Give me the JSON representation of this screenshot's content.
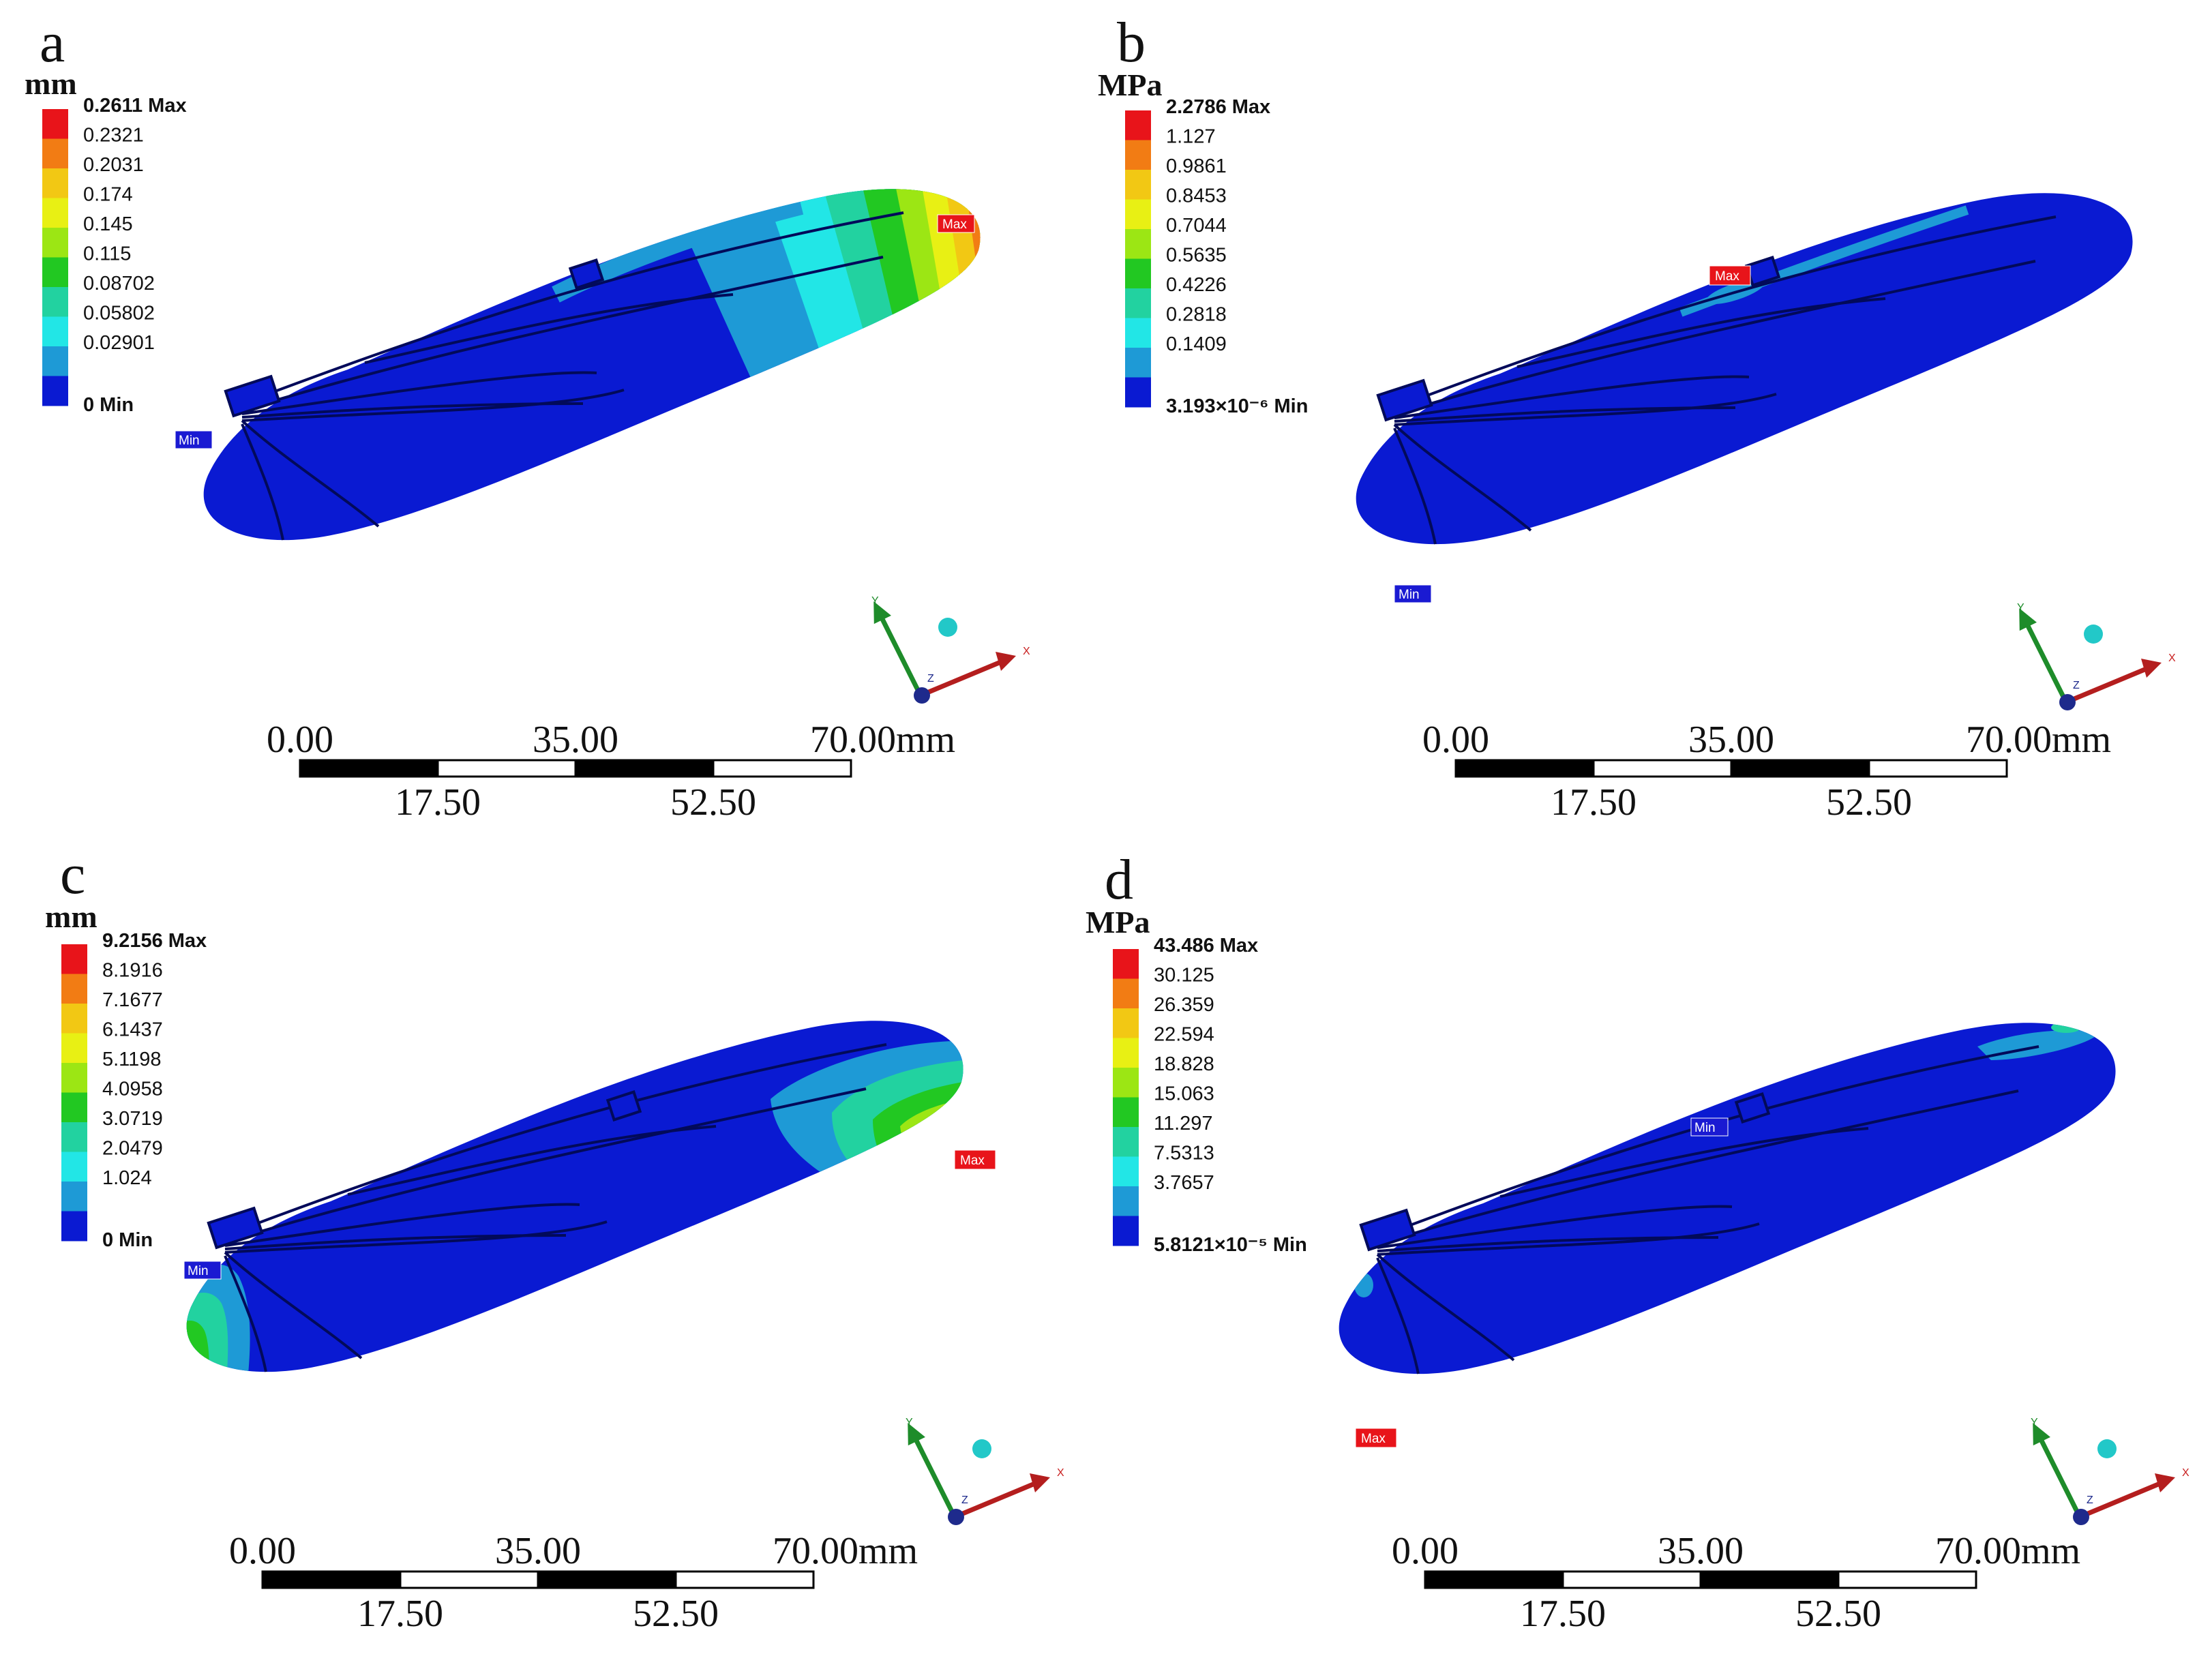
{
  "panels": [
    {
      "id": "a",
      "letter": "a",
      "unit": "mm",
      "legend": [
        {
          "label": "0.2611 Max",
          "color": "#e8141a"
        },
        {
          "label": "0.2321",
          "color": "#f27c14"
        },
        {
          "label": "0.2031",
          "color": "#f2c814"
        },
        {
          "label": "0.174",
          "color": "#e8f014"
        },
        {
          "label": "0.145",
          "color": "#9ce614"
        },
        {
          "label": "0.115",
          "color": "#22c822"
        },
        {
          "label": "0.08702",
          "color": "#22d2a0"
        },
        {
          "label": "0.05802",
          "color": "#22e6e6"
        },
        {
          "label": "0.02901",
          "color": "#1e9ad6"
        },
        {
          "label": "0 Min",
          "color": "#0a1ad2"
        }
      ],
      "max_tag": "Max",
      "min_tag": "Min",
      "scale": {
        "top": [
          "0.00",
          "35.00",
          "70.00mm"
        ],
        "bottom": [
          "17.50",
          "52.50"
        ]
      }
    },
    {
      "id": "b",
      "letter": "b",
      "unit": "MPa",
      "legend": [
        {
          "label": "2.2786 Max",
          "color": "#e8141a"
        },
        {
          "label": "1.127",
          "color": "#f27c14"
        },
        {
          "label": "0.9861",
          "color": "#f2c814"
        },
        {
          "label": "0.8453",
          "color": "#e8f014"
        },
        {
          "label": "0.7044",
          "color": "#9ce614"
        },
        {
          "label": "0.5635",
          "color": "#22c822"
        },
        {
          "label": "0.4226",
          "color": "#22d2a0"
        },
        {
          "label": "0.2818",
          "color": "#22e6e6"
        },
        {
          "label": "0.1409",
          "color": "#1e9ad6"
        },
        {
          "label": "3.193×10⁻⁶ Min",
          "color": "#0a1ad2"
        }
      ],
      "max_tag": "Max",
      "min_tag": "Min",
      "scale": {
        "top": [
          "0.00",
          "35.00",
          "70.00mm"
        ],
        "bottom": [
          "17.50",
          "52.50"
        ]
      }
    },
    {
      "id": "c",
      "letter": "c",
      "unit": "mm",
      "legend": [
        {
          "label": "9.2156 Max",
          "color": "#e8141a"
        },
        {
          "label": "8.1916",
          "color": "#f27c14"
        },
        {
          "label": "7.1677",
          "color": "#f2c814"
        },
        {
          "label": "6.1437",
          "color": "#e8f014"
        },
        {
          "label": "5.1198",
          "color": "#9ce614"
        },
        {
          "label": "4.0958",
          "color": "#22c822"
        },
        {
          "label": "3.0719",
          "color": "#22d2a0"
        },
        {
          "label": "2.0479",
          "color": "#22e6e6"
        },
        {
          "label": "1.024",
          "color": "#1e9ad6"
        },
        {
          "label": "0 Min",
          "color": "#0a1ad2"
        }
      ],
      "max_tag": "Max",
      "min_tag": "Min",
      "scale": {
        "top": [
          "0.00",
          "35.00",
          "70.00mm"
        ],
        "bottom": [
          "17.50",
          "52.50"
        ]
      }
    },
    {
      "id": "d",
      "letter": "d",
      "unit": "MPa",
      "legend": [
        {
          "label": "43.486 Max",
          "color": "#e8141a"
        },
        {
          "label": "30.125",
          "color": "#f27c14"
        },
        {
          "label": "26.359",
          "color": "#f2c814"
        },
        {
          "label": "22.594",
          "color": "#e8f014"
        },
        {
          "label": "18.828",
          "color": "#9ce614"
        },
        {
          "label": "15.063",
          "color": "#22c822"
        },
        {
          "label": "11.297",
          "color": "#22d2a0"
        },
        {
          "label": "7.5313",
          "color": "#22e6e6"
        },
        {
          "label": "3.7657",
          "color": "#1e9ad6"
        },
        {
          "label": "5.8121×10⁻⁵ Min",
          "color": "#0a1ad2"
        }
      ],
      "max_tag": "Max",
      "min_tag": "Min",
      "scale": {
        "top": [
          "0.00",
          "35.00",
          "70.00mm"
        ],
        "bottom": [
          "17.50",
          "52.50"
        ]
      }
    }
  ],
  "triad": {
    "y": "Y",
    "x": "X",
    "z": "Z",
    "y_color": "#1e8c2a",
    "x_color": "#c81e1e",
    "z_color": "#1e2a8c"
  }
}
